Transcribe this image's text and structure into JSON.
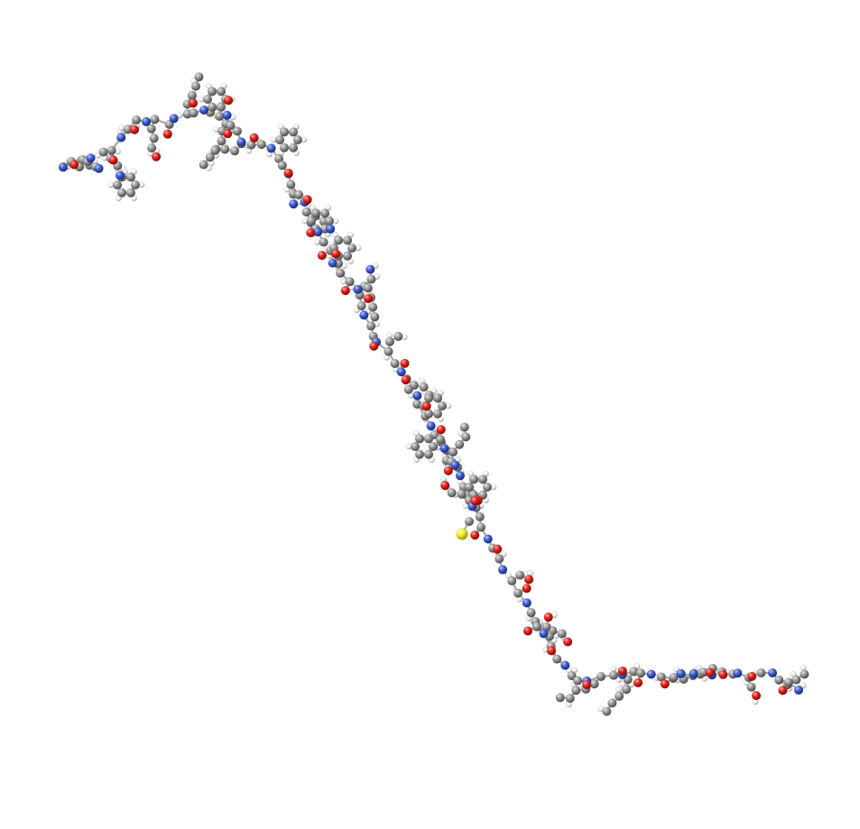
{
  "scene": {
    "kind": "ball-and-stick molecular model",
    "background": "#ffffff",
    "colors": {
      "carbon": "#8f8f8f",
      "hydrogen": "#ffffff",
      "oxygen": "#e8231c",
      "nitrogen": "#3f5fd8",
      "sulfur": "#f2ee2e",
      "bond": "#a8a8a8"
    }
  }
}
